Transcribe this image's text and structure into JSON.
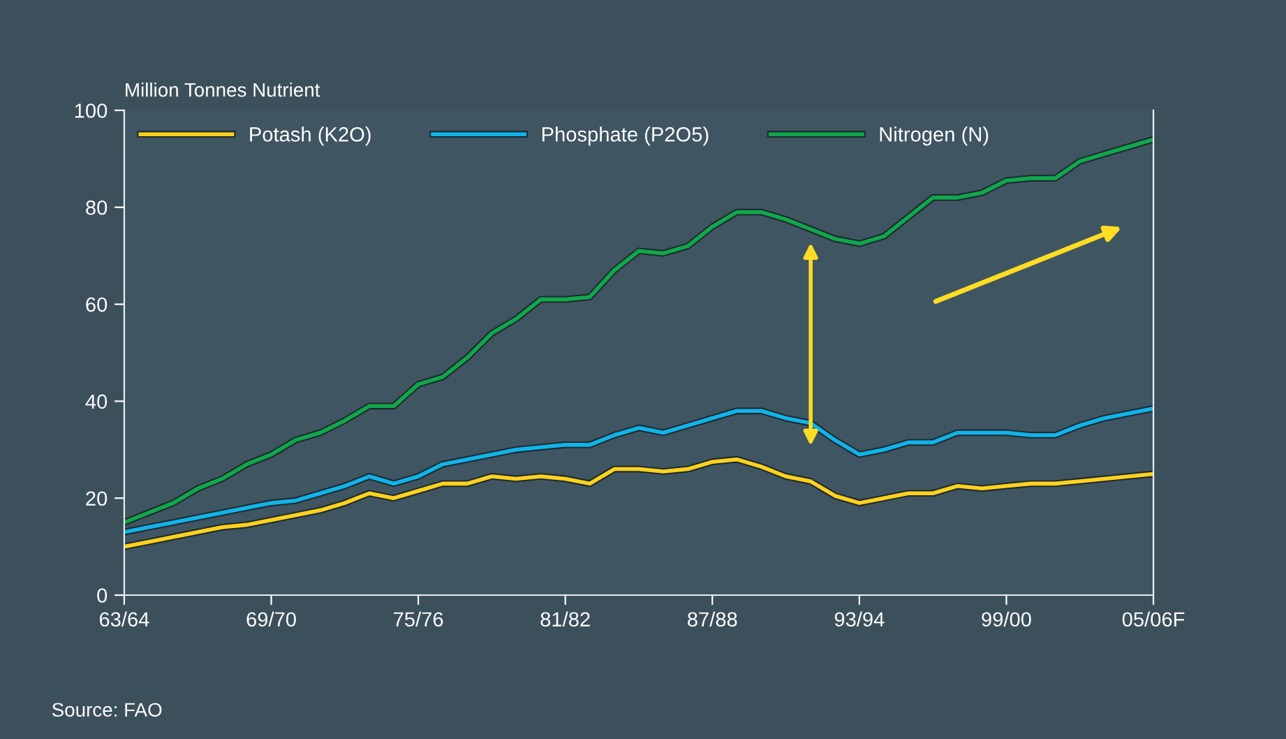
{
  "chart_data": {
    "type": "line",
    "ylabel": "Million Tonnes Nutrient",
    "categories": [
      "63/64",
      null,
      null,
      null,
      null,
      null,
      "69/70",
      null,
      null,
      null,
      null,
      null,
      "75/76",
      null,
      null,
      null,
      null,
      null,
      "81/82",
      null,
      null,
      null,
      null,
      null,
      "87/88",
      null,
      null,
      null,
      null,
      null,
      "93/94",
      null,
      null,
      null,
      null,
      null,
      "99/00",
      null,
      null,
      null,
      null,
      null,
      "05/06F"
    ],
    "series": [
      {
        "name": "Potash (K2O)",
        "color": "#ffd21e",
        "values": [
          10,
          11,
          12,
          13,
          14,
          14.5,
          15.5,
          16.5,
          17.5,
          19,
          21,
          20,
          21.5,
          23,
          23,
          24.5,
          24,
          24.5,
          24,
          23,
          26,
          26,
          25.5,
          26,
          27.5,
          28,
          26.5,
          24.5,
          23.5,
          20.5,
          19,
          20,
          21,
          21,
          22.5,
          22,
          22.5,
          23,
          23,
          23.5,
          24,
          24.5,
          25
        ]
      },
      {
        "name": "Phosphate (P2O5)",
        "color": "#10b4ea",
        "values": [
          13,
          14,
          15,
          16,
          17,
          18,
          19,
          19.5,
          21,
          22.5,
          24.5,
          23,
          24.5,
          27,
          28,
          29,
          30,
          30.5,
          31,
          31,
          33,
          34.5,
          33.5,
          35,
          36.5,
          38,
          38,
          36.5,
          35.5,
          32,
          29,
          30,
          31.5,
          31.5,
          33.5,
          33.5,
          33.5,
          33,
          33,
          35,
          36.5,
          37.5,
          38.5
        ]
      },
      {
        "name": "Nitrogen (N)",
        "color": "#10a84a",
        "values": [
          15,
          17,
          19,
          22,
          24,
          27,
          29,
          32,
          33.5,
          36,
          39,
          39,
          43.5,
          45,
          49,
          54,
          57,
          61,
          61,
          61.5,
          67,
          71,
          70.5,
          72,
          76,
          79,
          79,
          77.5,
          75.5,
          73.5,
          72.5,
          74,
          78,
          82,
          82,
          83,
          85.5,
          86,
          86,
          89.5,
          91,
          92.5,
          94
        ]
      }
    ],
    "ylim": [
      0,
      100
    ],
    "yticks": [
      0,
      20,
      40,
      60,
      80,
      100
    ],
    "grid": false,
    "legend": "top left",
    "marker": "none",
    "line_style": "solid",
    "annotations": [
      "Source: FAO"
    ]
  }
}
